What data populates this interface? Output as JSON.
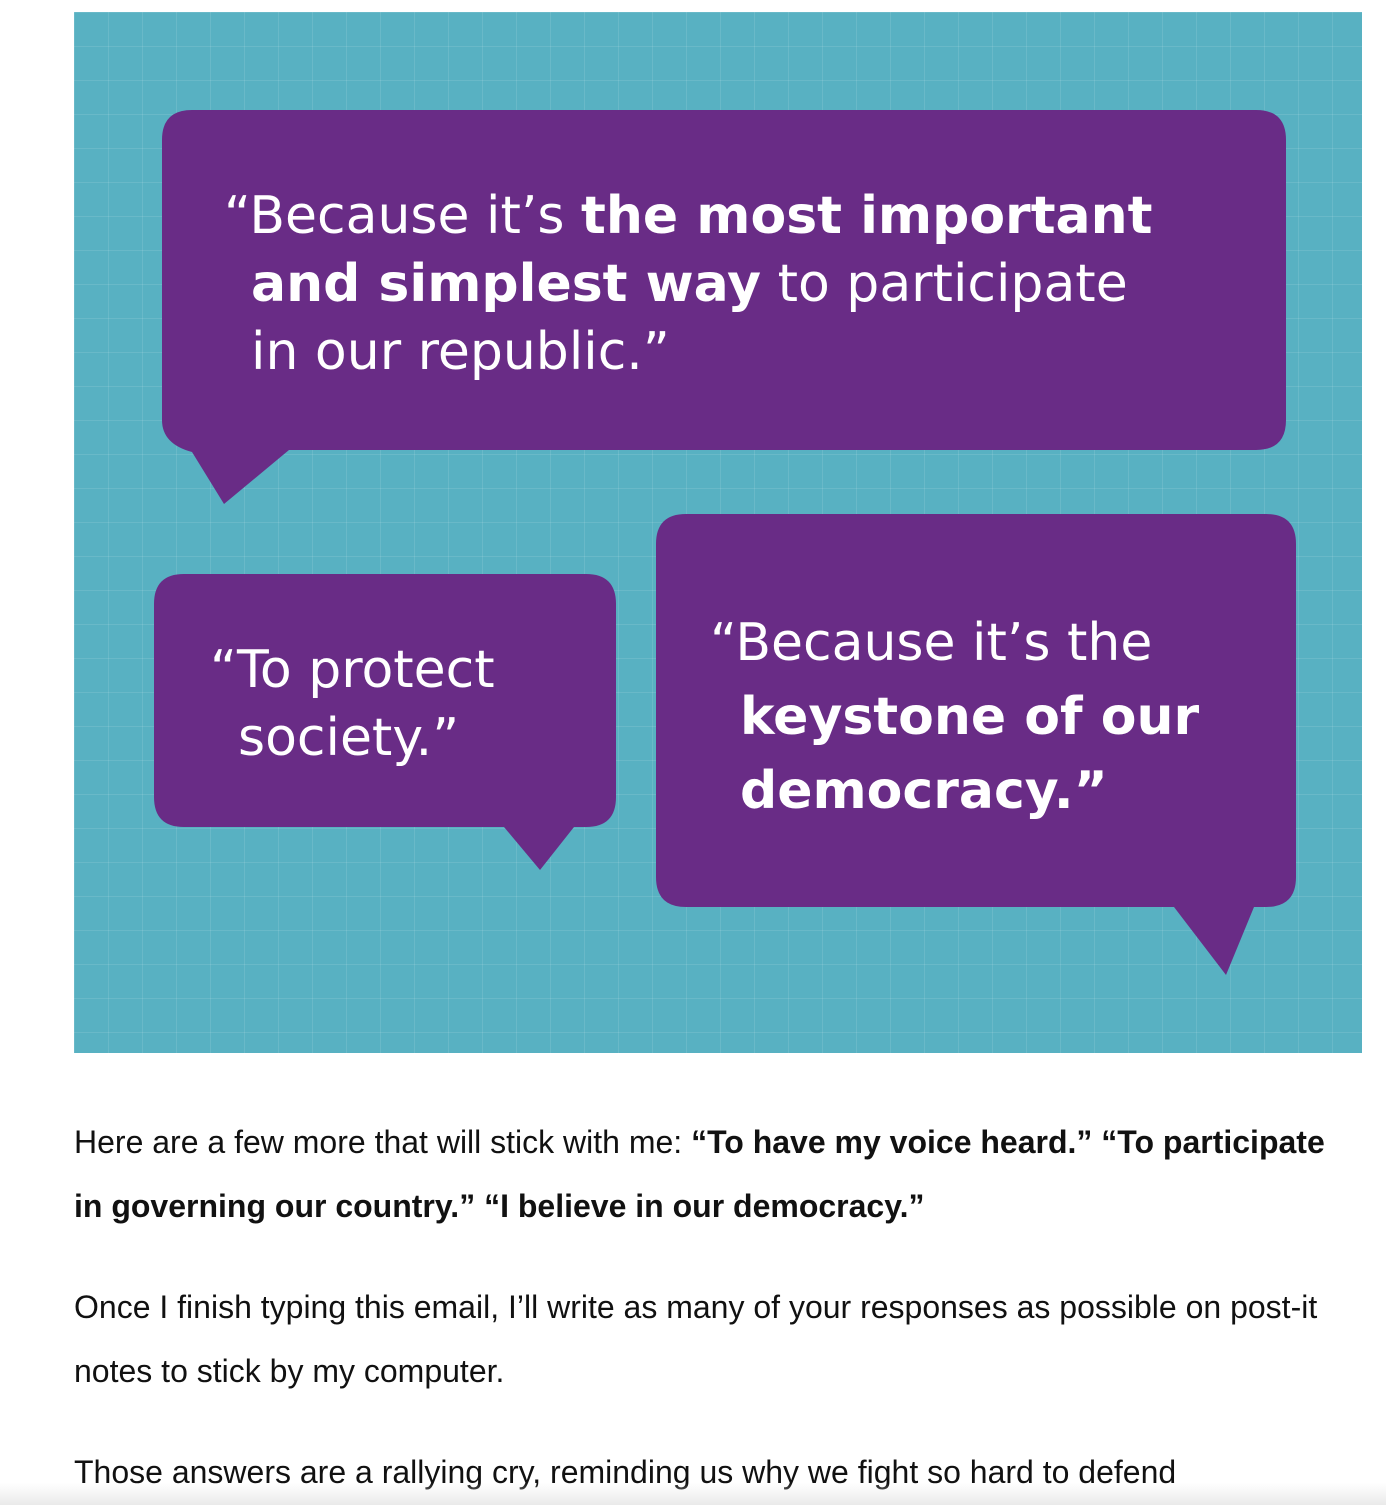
{
  "image": {
    "background_color": "#58b1c2",
    "bubble_color": "#692c86",
    "bubble1": {
      "line1_prefix": "“Because it’s ",
      "line1_bold": "the most important",
      "line2_bold": "and simplest way",
      "line2_rest": " to participate",
      "line3": "in our republic.”"
    },
    "bubble2": {
      "line1": "“To protect",
      "line2": "society.”"
    },
    "bubble3": {
      "line1": "“Because it’s the",
      "line2_bold": "keystone of our",
      "line3_bold": "democracy.”"
    }
  },
  "paragraph1": {
    "intro": "Here are a few more that will stick with me: ",
    "quote1": "“To have my voice heard.”",
    "quote2": "“To participate in governing our country.”",
    "quote3": "“I believe in our democracy.”"
  },
  "paragraph2": "Once I finish typing this email, I’ll write as many of your responses as possible on post-it notes to stick by my computer.",
  "paragraph3": "Those answers are a rallying cry, reminding us why we fight so hard to defend"
}
